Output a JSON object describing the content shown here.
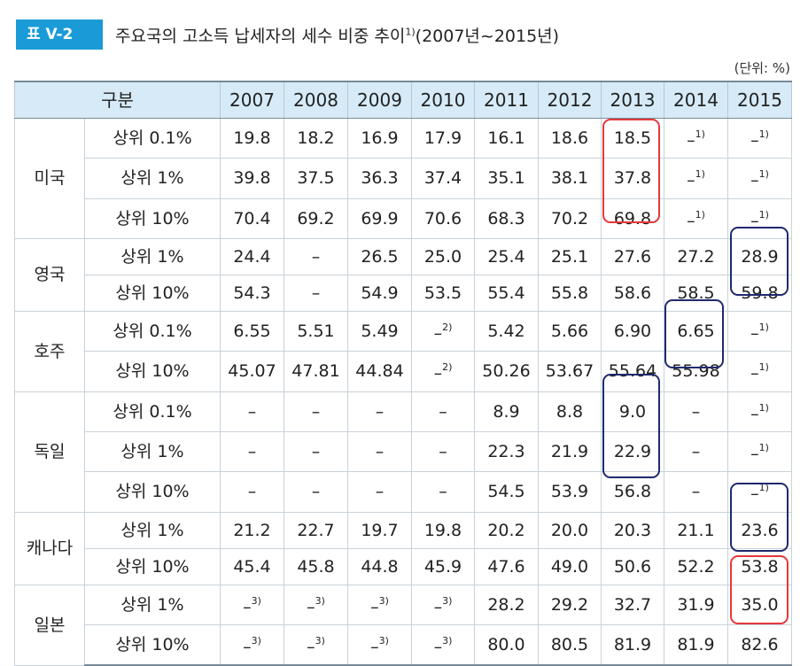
{
  "header": {
    "tag": "표 V-2",
    "title": "주요국의 고소득 납세자의 세수 비중 추이",
    "title_sup": "1)",
    "title_tail": "(2007년~2015년)"
  },
  "unit": "(단위: %)",
  "table": {
    "corner": "구분",
    "years": [
      "2007",
      "2008",
      "2009",
      "2010",
      "2011",
      "2012",
      "2013",
      "2014",
      "2015"
    ],
    "groups": [
      {
        "country": "미국",
        "rows": [
          {
            "label": "상위 0.1%",
            "cells": [
              "19.8",
              "18.2",
              "16.9",
              "17.9",
              "16.1",
              "18.6",
              "18.5",
              "–1)",
              "–1)"
            ]
          },
          {
            "label": "상위 1%",
            "cells": [
              "39.8",
              "37.5",
              "36.3",
              "37.4",
              "35.1",
              "38.1",
              "37.8",
              "–1)",
              "–1)"
            ]
          },
          {
            "label": "상위 10%",
            "cells": [
              "70.4",
              "69.2",
              "69.9",
              "70.6",
              "68.3",
              "70.2",
              "69.8",
              "–1)",
              "–1)"
            ]
          }
        ]
      },
      {
        "country": "영국",
        "rows": [
          {
            "label": "상위 1%",
            "cells": [
              "24.4",
              "–",
              "26.5",
              "25.0",
              "25.4",
              "25.1",
              "27.6",
              "27.2",
              "28.9"
            ]
          },
          {
            "label": "상위 10%",
            "cells": [
              "54.3",
              "–",
              "54.9",
              "53.5",
              "55.4",
              "55.8",
              "58.6",
              "58.5",
              "59.8"
            ]
          }
        ]
      },
      {
        "country": "호주",
        "rows": [
          {
            "label": "상위 0.1%",
            "cells": [
              "6.55",
              "5.51",
              "5.49",
              "–2)",
              "5.42",
              "5.66",
              "6.90",
              "6.65",
              "–1)"
            ]
          },
          {
            "label": "상위 10%",
            "cells": [
              "45.07",
              "47.81",
              "44.84",
              "–2)",
              "50.26",
              "53.67",
              "55.64",
              "55.98",
              "–1)"
            ]
          }
        ]
      },
      {
        "country": "독일",
        "rows": [
          {
            "label": "상위 0.1%",
            "cells": [
              "–",
              "–",
              "–",
              "–",
              "8.9",
              "8.8",
              "9.0",
              "–",
              "–1)"
            ]
          },
          {
            "label": "상위 1%",
            "cells": [
              "–",
              "–",
              "–",
              "–",
              "22.3",
              "21.9",
              "22.9",
              "–",
              "–1)"
            ]
          },
          {
            "label": "상위 10%",
            "cells": [
              "–",
              "–",
              "–",
              "–",
              "54.5",
              "53.9",
              "56.8",
              "–",
              "–1)"
            ]
          }
        ]
      },
      {
        "country": "캐나다",
        "rows": [
          {
            "label": "상위 1%",
            "cells": [
              "21.2",
              "22.7",
              "19.7",
              "19.8",
              "20.2",
              "20.0",
              "20.3",
              "21.1",
              "23.6"
            ]
          },
          {
            "label": "상위 10%",
            "cells": [
              "45.4",
              "45.8",
              "44.8",
              "45.9",
              "47.6",
              "49.0",
              "50.6",
              "52.2",
              "53.8"
            ]
          }
        ]
      },
      {
        "country": "일본",
        "rows": [
          {
            "label": "상위 1%",
            "cells": [
              "–3)",
              "–3)",
              "–3)",
              "–3)",
              "28.2",
              "29.2",
              "32.7",
              "31.9",
              "35.0"
            ]
          },
          {
            "label": "상위 10%",
            "cells": [
              "–3)",
              "–3)",
              "–3)",
              "–3)",
              "80.0",
              "80.5",
              "81.9",
              "81.9",
              "82.6"
            ]
          }
        ]
      }
    ]
  },
  "highlight_colors": {
    "red": "#e5383b",
    "navy": "#1f2a6e"
  }
}
